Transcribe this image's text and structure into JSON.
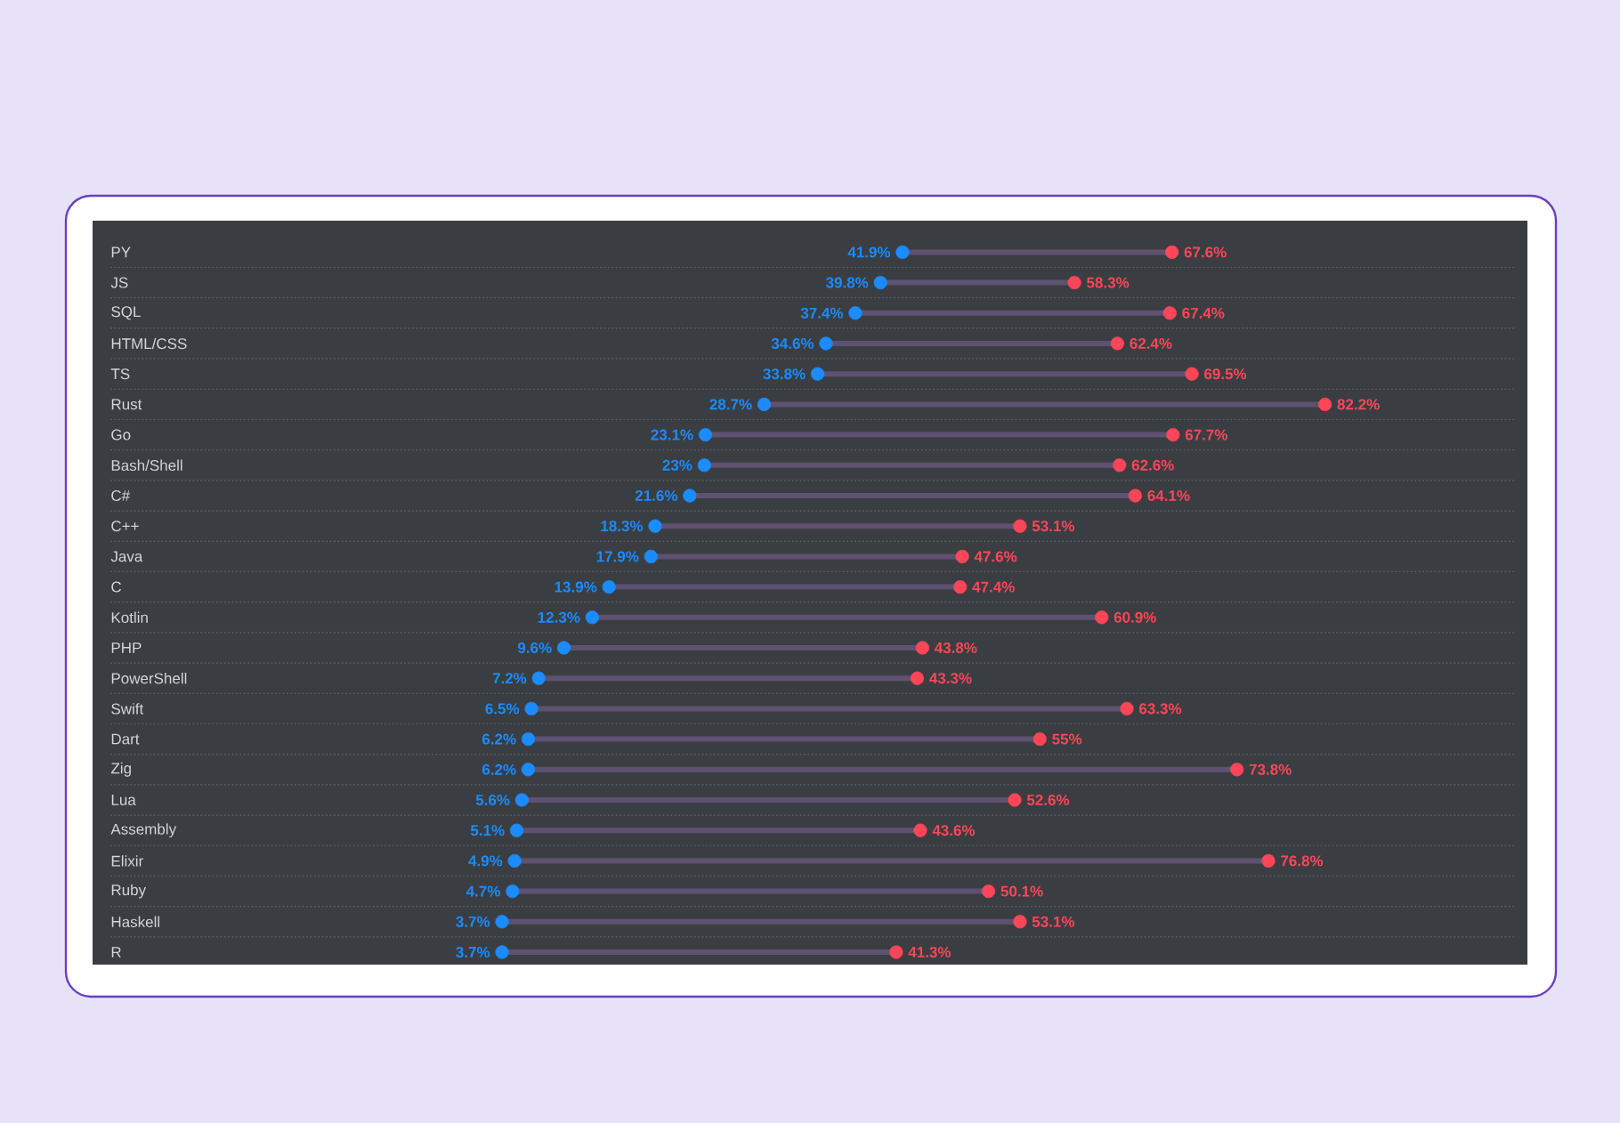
{
  "chart_data": {
    "type": "scatter",
    "orientation": "horizontal",
    "marker": "circle",
    "grid": "y",
    "tick_labels": "y",
    "categories": [
      "PY",
      "JS",
      "SQL",
      "HTML/CSS",
      "TS",
      "Rust",
      "Go",
      "Bash/Shell",
      "C#",
      "C++",
      "Java",
      "C",
      "Kotlin",
      "PHP",
      "PowerShell",
      "Swift",
      "Dart",
      "Zig",
      "Lua",
      "Assembly",
      "Elixir",
      "Ruby",
      "Haskell",
      "R"
    ],
    "series": [
      {
        "color": "#1a8cff",
        "values": [
          41.9,
          39.8,
          37.4,
          34.6,
          33.8,
          28.7,
          23.1,
          23,
          21.6,
          18.3,
          17.9,
          13.9,
          12.3,
          9.6,
          7.2,
          6.5,
          6.2,
          6.2,
          5.6,
          5.1,
          4.9,
          4.7,
          3.7,
          3.7
        ],
        "value_labels": [
          "41.9%",
          "39.8%",
          "37.4%",
          "34.6%",
          "33.8%",
          "28.7%",
          "23.1%",
          "23%",
          "21.6%",
          "18.3%",
          "17.9%",
          "13.9%",
          "12.3%",
          "9.6%",
          "7.2%",
          "6.5%",
          "6.2%",
          "6.2%",
          "5.6%",
          "5.1%",
          "4.9%",
          "4.7%",
          "3.7%",
          "3.7%"
        ]
      },
      {
        "color": "#ff4558",
        "values": [
          67.6,
          58.3,
          67.4,
          62.4,
          69.5,
          82.2,
          67.7,
          62.6,
          64.1,
          53.1,
          47.6,
          47.4,
          60.9,
          43.8,
          43.3,
          63.3,
          55,
          73.8,
          52.6,
          43.6,
          76.8,
          50.1,
          53.1,
          41.3
        ],
        "value_labels": [
          "67.6%",
          "58.3%",
          "67.4%",
          "62.4%",
          "69.5%",
          "82.2%",
          "67.7%",
          "62.6%",
          "64.1%",
          "53.1%",
          "47.6%",
          "47.4%",
          "60.9%",
          "43.8%",
          "43.3%",
          "63.3%",
          "55%",
          "73.8%",
          "52.6%",
          "43.6%",
          "76.8%",
          "50.1%",
          "53.1%",
          "41.3%"
        ]
      }
    ]
  }
}
